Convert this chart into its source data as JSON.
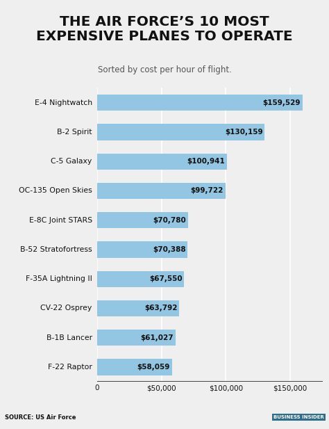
{
  "title": "THE AIR FORCE’S 10 MOST\nEXPENSIVE PLANES TO OPERATE",
  "subtitle": "Sorted by cost per hour of flight.",
  "categories": [
    "F-22 Raptor",
    "B-1B Lancer",
    "CV-22 Osprey",
    "F-35A Lightning II",
    "B-52 Stratofortress",
    "E-8C Joint STARS",
    "OC-135 Open Skies",
    "C-5 Galaxy",
    "B-2 Spirit",
    "E-4 Nightwatch"
  ],
  "values": [
    58059,
    61027,
    63792,
    67550,
    70388,
    70780,
    99722,
    100941,
    130159,
    159529
  ],
  "bar_color": "#93C6E3",
  "value_labels": [
    "$58,059",
    "$61,027",
    "$63,792",
    "$67,550",
    "$70,388",
    "$70,780",
    "$99,722",
    "$100,941",
    "$130,159",
    "$159,529"
  ],
  "background_color": "#EFEFEF",
  "plot_bg_color": "#EFEFEF",
  "title_color": "#111111",
  "subtitle_color": "#555555",
  "label_color": "#111111",
  "value_color": "#111111",
  "xlim": [
    0,
    175000
  ],
  "xticks": [
    0,
    50000,
    100000,
    150000
  ],
  "xtick_labels": [
    "0",
    "$50,000",
    "$100,000",
    "$150,000"
  ],
  "source_text": "SOURCE: US Air Force",
  "footer_bg": "#8B9EA8",
  "bi_label": "BUSINESS INSIDER",
  "bi_bg": "#2E6D8E",
  "title_fontsize": 14.5,
  "subtitle_fontsize": 8.5,
  "label_fontsize": 7.8,
  "value_fontsize": 7.5,
  "xtick_fontsize": 7.5,
  "bar_height": 0.55
}
